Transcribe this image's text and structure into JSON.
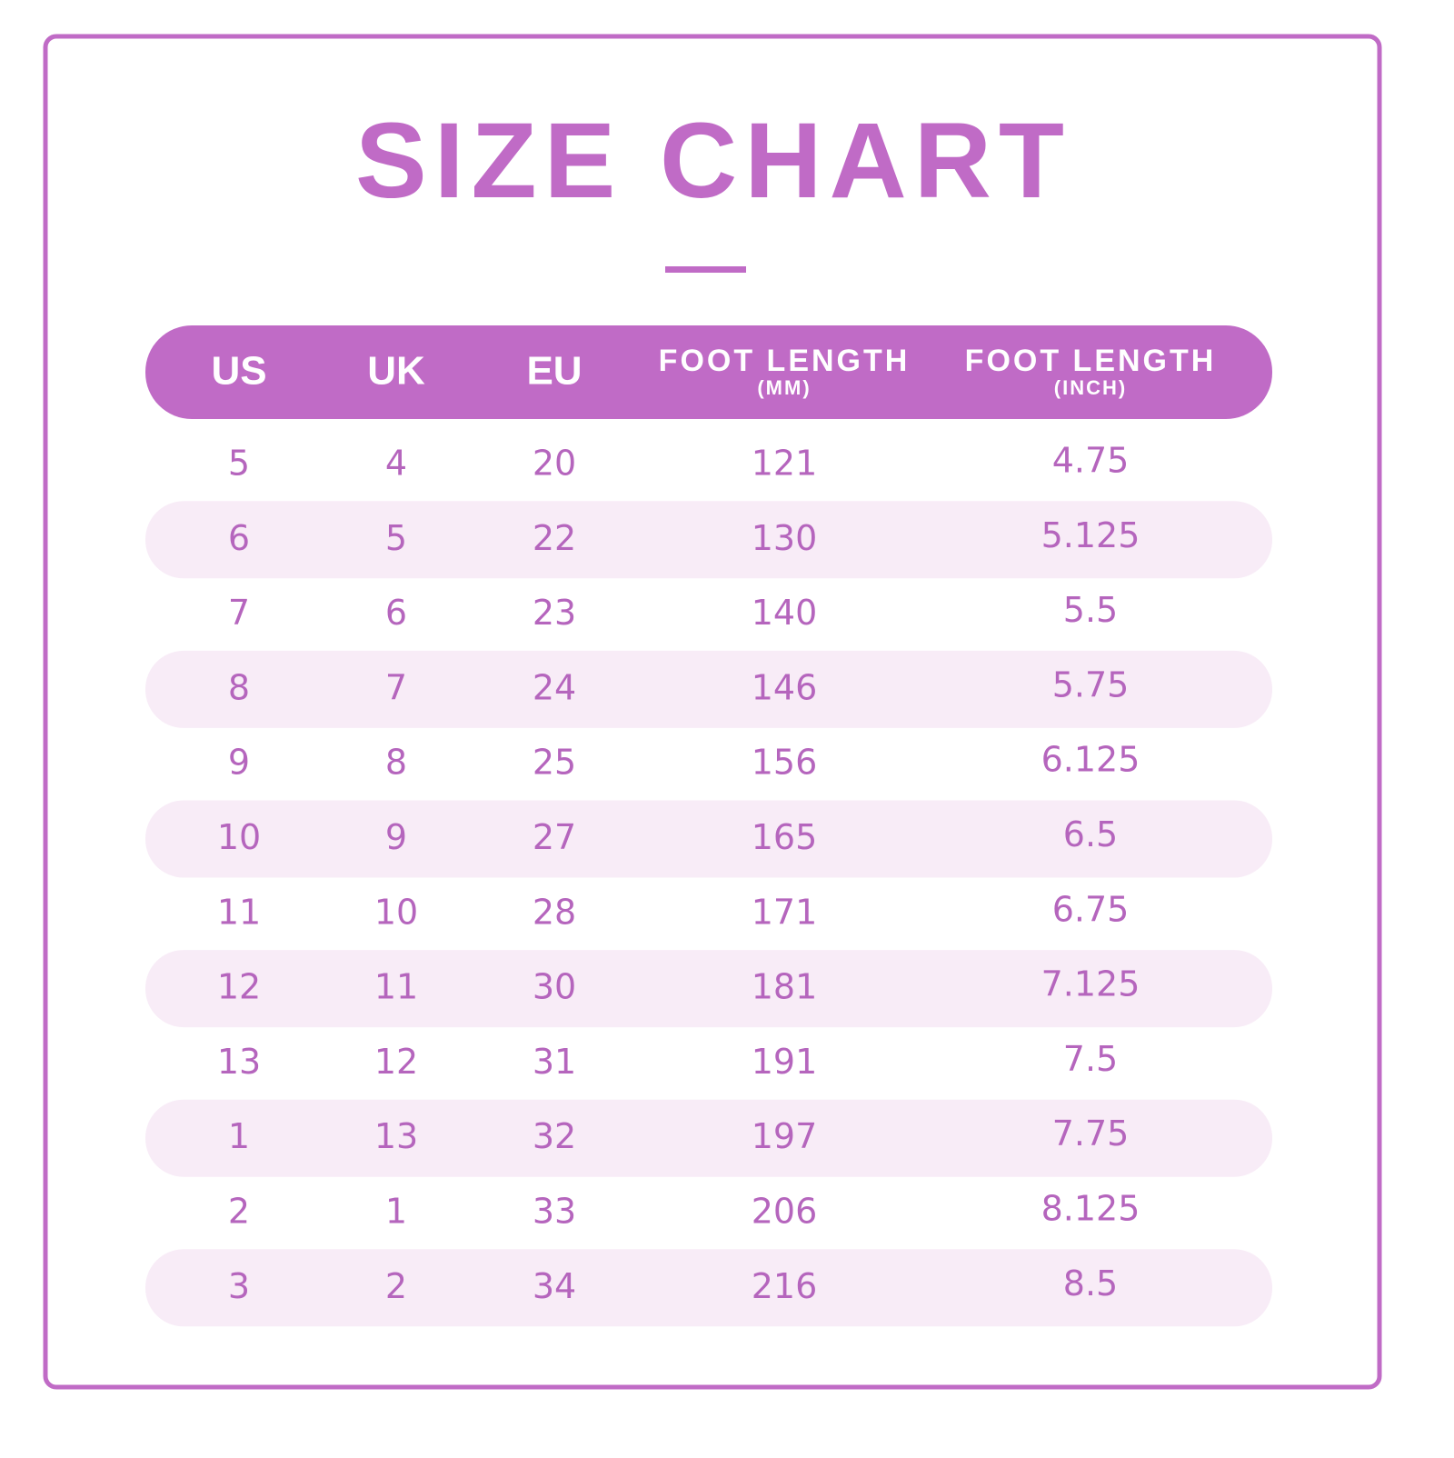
{
  "header": {
    "title": "SIZE CHART"
  },
  "table": {
    "columns": [
      {
        "label": "US"
      },
      {
        "label": "UK"
      },
      {
        "label": "EU"
      },
      {
        "label": "FOOT LENGTH",
        "sub": "(MM)"
      },
      {
        "label": "FOOT LENGTH",
        "sub": "(INCH)"
      }
    ],
    "rows": [
      [
        "5",
        "4",
        "20",
        "121",
        "4.75"
      ],
      [
        "6",
        "5",
        "22",
        "130",
        "5.125"
      ],
      [
        "7",
        "6",
        "23",
        "140",
        "5.5"
      ],
      [
        "8",
        "7",
        "24",
        "146",
        "5.75"
      ],
      [
        "9",
        "8",
        "25",
        "156",
        "6.125"
      ],
      [
        "10",
        "9",
        "27",
        "165",
        "6.5"
      ],
      [
        "11",
        "10",
        "28",
        "171",
        "6.75"
      ],
      [
        "12",
        "11",
        "30",
        "181",
        "7.125"
      ],
      [
        "13",
        "12",
        "31",
        "191",
        "7.5"
      ],
      [
        "1",
        "13",
        "32",
        "197",
        "7.75"
      ],
      [
        "2",
        "1",
        "33",
        "206",
        "8.125"
      ],
      [
        "3",
        "2",
        "34",
        "216",
        "8.5"
      ]
    ]
  }
}
